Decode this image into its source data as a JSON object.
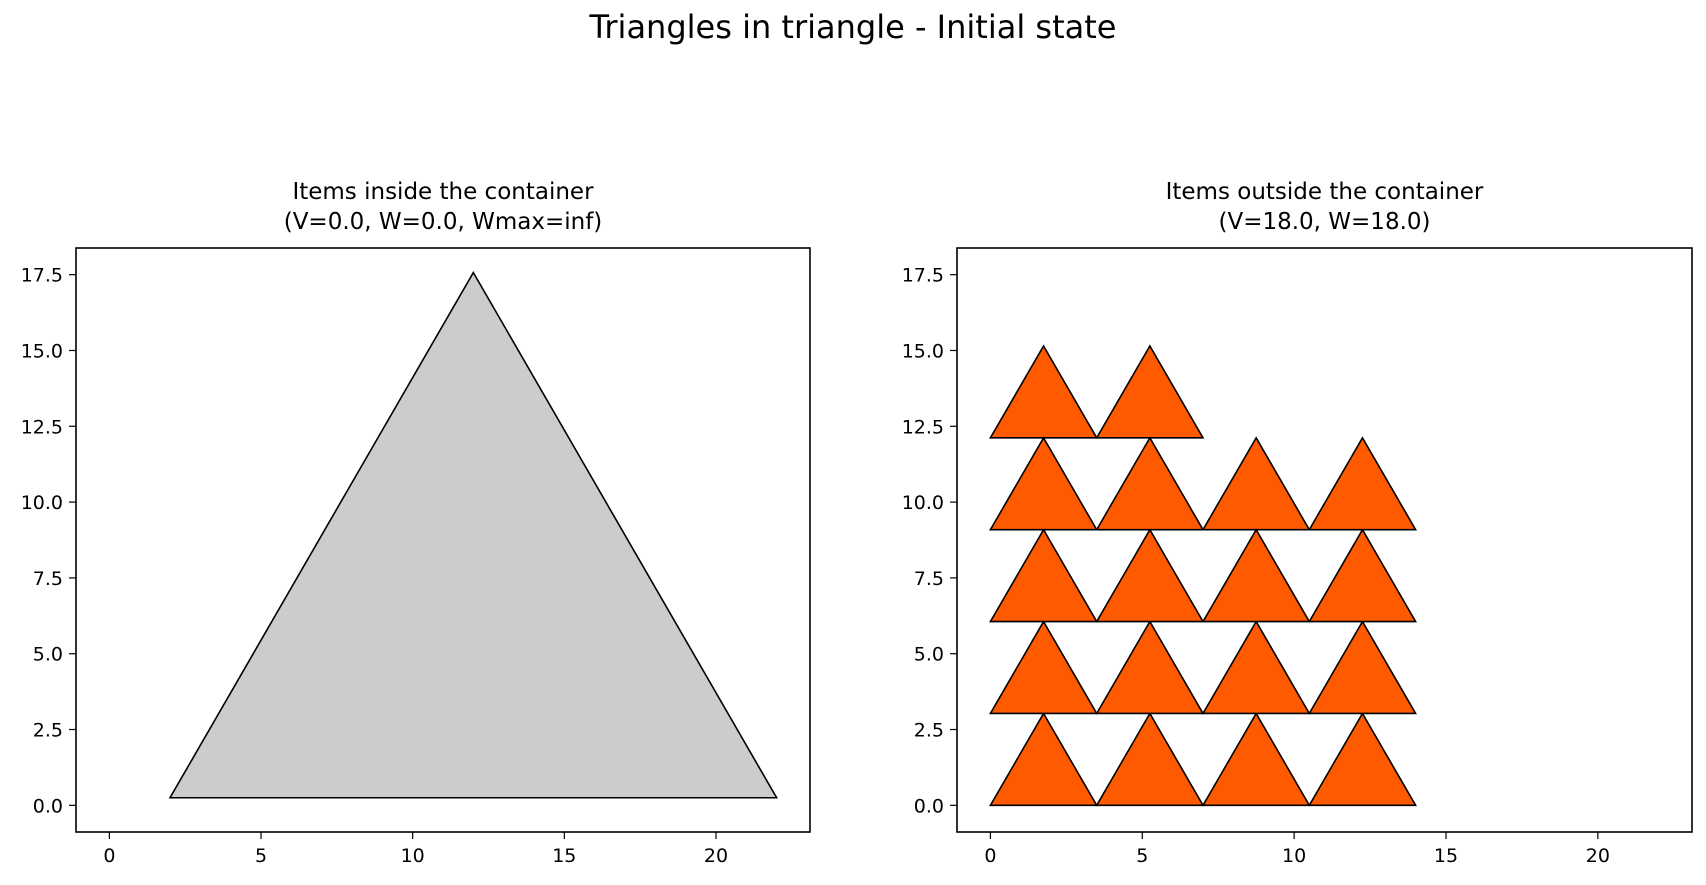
{
  "figure": {
    "title": "Triangles in triangle - Initial state"
  },
  "chart_data": [
    {
      "type": "scatter",
      "title_line1": "Items inside the container",
      "title_line2": "(V=0.0, W=0.0, Wmax=inf)",
      "xlabel": "",
      "ylabel": "",
      "xlim": [
        -1.1,
        23.1
      ],
      "ylim": [
        -0.88,
        18.38
      ],
      "xticks": [
        0,
        5,
        10,
        15,
        20
      ],
      "yticks": [
        0.0,
        2.5,
        5.0,
        7.5,
        10.0,
        12.5,
        15.0,
        17.5
      ],
      "grid": false,
      "polygons": [
        {
          "name": "container",
          "fill": "#cccccc",
          "points": [
            [
              2,
              0.25
            ],
            [
              22,
              0.25
            ],
            [
              12,
              17.57
            ]
          ]
        }
      ]
    },
    {
      "type": "scatter",
      "title_line1": "Items outside the container",
      "title_line2": "(V=18.0, W=18.0)",
      "xlabel": "",
      "ylabel": "",
      "xlim": [
        -1.1,
        23.1
      ],
      "ylim": [
        -0.88,
        18.38
      ],
      "xticks": [
        0,
        5,
        10,
        15,
        20
      ],
      "yticks": [
        0.0,
        2.5,
        5.0,
        7.5,
        10.0,
        12.5,
        15.0,
        17.5
      ],
      "grid": false,
      "item_fill": "#ff5a00",
      "item_size": {
        "width": 3.5,
        "height": 3.03
      },
      "item_origins": [
        [
          0,
          0
        ],
        [
          3.5,
          0
        ],
        [
          7,
          0
        ],
        [
          10.5,
          0
        ],
        [
          0,
          3.03
        ],
        [
          3.5,
          3.03
        ],
        [
          7,
          3.03
        ],
        [
          10.5,
          3.03
        ],
        [
          0,
          6.06
        ],
        [
          3.5,
          6.06
        ],
        [
          7,
          6.06
        ],
        [
          10.5,
          6.06
        ],
        [
          0,
          9.09
        ],
        [
          3.5,
          9.09
        ],
        [
          7,
          9.09
        ],
        [
          10.5,
          9.09
        ],
        [
          0,
          12.12
        ],
        [
          3.5,
          12.12
        ]
      ]
    }
  ]
}
